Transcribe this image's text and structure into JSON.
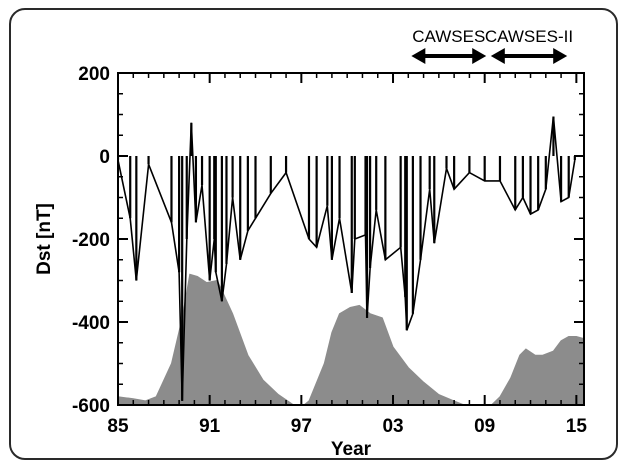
{
  "chart_data": {
    "type": "line",
    "title": "",
    "xlabel": "Year",
    "ylabel": "Dst [nT]",
    "xlim": [
      1985,
      2015.5
    ],
    "ylim": [
      -600,
      200
    ],
    "x_ticks": [
      {
        "value": 1985,
        "label": "85"
      },
      {
        "value": 1991,
        "label": "91"
      },
      {
        "value": 1997,
        "label": "97"
      },
      {
        "value": 2003,
        "label": "03"
      },
      {
        "value": 2009,
        "label": "09"
      },
      {
        "value": 2015,
        "label": "15"
      }
    ],
    "y_ticks": [
      {
        "value": 200,
        "label": "200"
      },
      {
        "value": 0,
        "label": "0"
      },
      {
        "value": -200,
        "label": "-200"
      },
      {
        "value": -400,
        "label": "-400"
      },
      {
        "value": -600,
        "label": "-600"
      }
    ],
    "series": [
      {
        "type": "line",
        "color": "#000000",
        "x": [
          1985.0,
          1985.8,
          1986.2,
          1987.0,
          1988.5,
          1989.0,
          1989.2,
          1989.5,
          1989.8,
          1990.1,
          1990.5,
          1991.0,
          1991.3,
          1991.4,
          1991.8,
          1992.1,
          1992.5,
          1993.0,
          1993.5,
          1994.0,
          1995.0,
          1996.0,
          1997.5,
          1998.0,
          1998.7,
          1999.0,
          1999.5,
          2000.3,
          2000.5,
          2001.2,
          2001.3,
          2001.5,
          2001.9,
          2002.5,
          2003.5,
          2003.8,
          2003.9,
          2004.3,
          2004.8,
          2005.4,
          2005.7,
          2006.5,
          2007.0,
          2008.0,
          2009.0,
          2010.0,
          2011.0,
          2011.5,
          2012.0,
          2012.5,
          2013.0,
          2013.5,
          2014.0,
          2014.5,
          2014.9
        ],
        "y": [
          -10,
          -150,
          -300,
          -20,
          -160,
          -280,
          -590,
          -200,
          80,
          -160,
          -70,
          -300,
          -200,
          -280,
          -350,
          -260,
          -100,
          -250,
          -180,
          -150,
          -90,
          -40,
          -200,
          -220,
          -120,
          -250,
          -150,
          -330,
          -200,
          -190,
          -390,
          -270,
          -130,
          -250,
          -220,
          -340,
          -420,
          -380,
          -250,
          -80,
          -210,
          -30,
          -80,
          -40,
          -60,
          -60,
          -130,
          -100,
          -140,
          -130,
          -80,
          95,
          -110,
          -100,
          -10
        ]
      },
      {
        "type": "area",
        "color": "#8c8c8c",
        "x": [
          1985.0,
          1986.0,
          1986.8,
          1987.5,
          1988.5,
          1989.2,
          1989.7,
          1990.2,
          1990.8,
          1991.5,
          1992.5,
          1993.5,
          1994.5,
          1995.5,
          1996.5,
          1997.0,
          1997.5,
          1998.5,
          1999.0,
          1999.5,
          2000.2,
          2000.8,
          2001.5,
          2002.3,
          2003.0,
          2004.0,
          2005.0,
          2006.0,
          2007.0,
          2008.0,
          2008.8,
          2009.3,
          2010.0,
          2010.7,
          2011.3,
          2011.7,
          2012.3,
          2012.8,
          2013.5,
          2014.0,
          2014.5,
          2015.0,
          2015.5
        ],
        "y": [
          -580,
          -585,
          -590,
          -580,
          -500,
          -390,
          -285,
          -290,
          -305,
          -300,
          -380,
          -480,
          -540,
          -575,
          -600,
          -605,
          -590,
          -500,
          -425,
          -380,
          -365,
          -360,
          -380,
          -390,
          -460,
          -510,
          -545,
          -575,
          -590,
          -605,
          -610,
          -605,
          -580,
          -535,
          -480,
          -465,
          -480,
          -480,
          -470,
          -445,
          -435,
          -435,
          -440
        ]
      }
    ],
    "annotations": [
      {
        "text": "CAWSES",
        "x_start": 2004.2,
        "x_end": 2009.1
      },
      {
        "text": "CAWSES-II",
        "x_start": 2009.4,
        "x_end": 2014.4
      }
    ]
  }
}
